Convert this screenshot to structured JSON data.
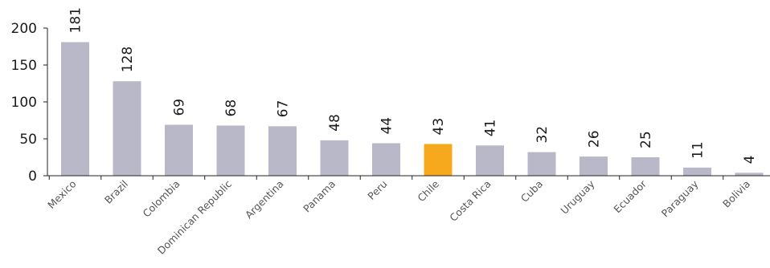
{
  "chart_data": {
    "type": "bar",
    "title": "",
    "xlabel": "",
    "ylabel": "",
    "ylim": [
      0,
      200
    ],
    "yticks": [
      0,
      50,
      100,
      150,
      200
    ],
    "grid": false,
    "categories": [
      "Mexico",
      "Brazil",
      "Colombia",
      "Dominican Republic",
      "Argentina",
      "Panama",
      "Peru",
      "Chile",
      "Costa Rica",
      "Cuba",
      "Uruguay",
      "Ecuador",
      "Paraguay",
      "Bolivia"
    ],
    "values": [
      181,
      128,
      69,
      68,
      67,
      48,
      44,
      43,
      41,
      32,
      26,
      25,
      11,
      4
    ],
    "highlight": "Chile",
    "colors": {
      "bar": "#b8b8c9",
      "highlight": "#f7a91e",
      "axis": "#222222"
    }
  }
}
